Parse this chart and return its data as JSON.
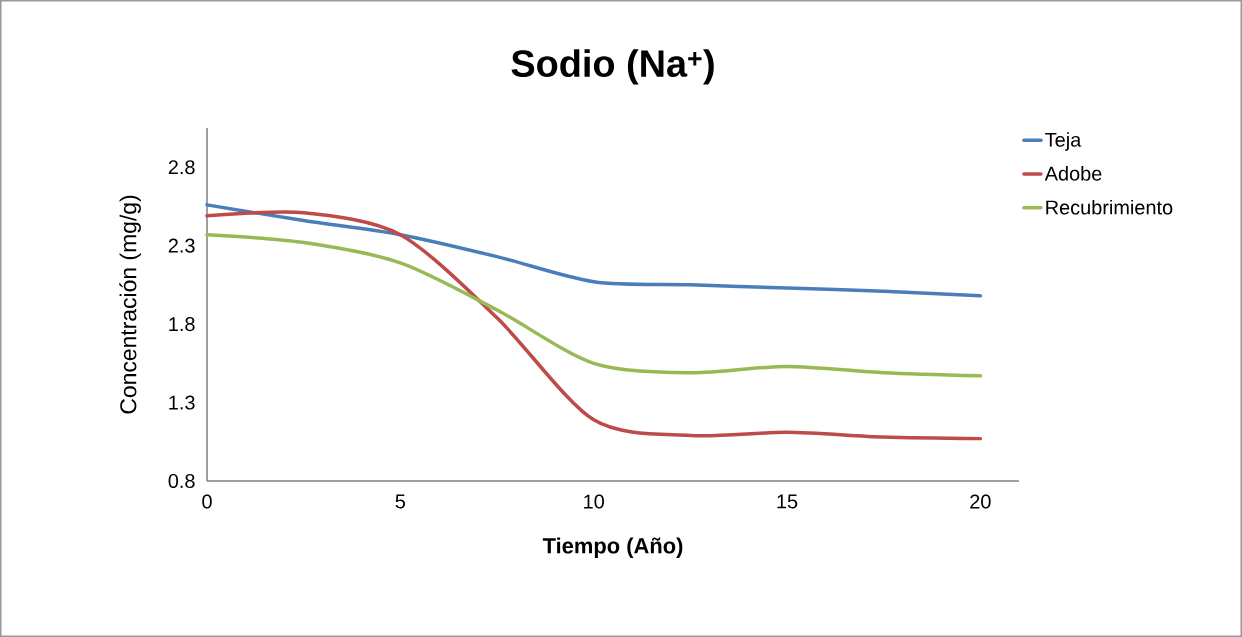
{
  "chart_data": {
    "type": "line",
    "title": "Sodio (Na$^{+}$)",
    "xlabel": "Tiempo (Año)",
    "ylabel": "Concentración (mg/g)",
    "x": [
      0,
      2.5,
      5,
      7.5,
      10,
      12.5,
      15,
      17.5,
      20
    ],
    "series": [
      {
        "name": "Teja",
        "color": "#4a7ebb",
        "values": [
          2.56,
          2.46,
          2.37,
          2.23,
          2.07,
          2.05,
          2.03,
          2.01,
          1.98
        ]
      },
      {
        "name": "Adobe",
        "color": "#be4b48",
        "values": [
          2.49,
          2.51,
          2.37,
          1.84,
          1.19,
          1.09,
          1.11,
          1.08,
          1.07
        ]
      },
      {
        "name": "Recubrimiento",
        "color": "#98b954",
        "values": [
          2.37,
          2.32,
          2.19,
          1.89,
          1.55,
          1.49,
          1.53,
          1.49,
          1.47
        ]
      }
    ],
    "xlim": [
      0,
      21
    ],
    "xticks": [
      0,
      5,
      10,
      15,
      20
    ],
    "ylim": [
      0.8,
      3.05
    ],
    "yticks": [
      0.8,
      1.3,
      1.8,
      2.3,
      2.8
    ],
    "legend": "top right"
  }
}
